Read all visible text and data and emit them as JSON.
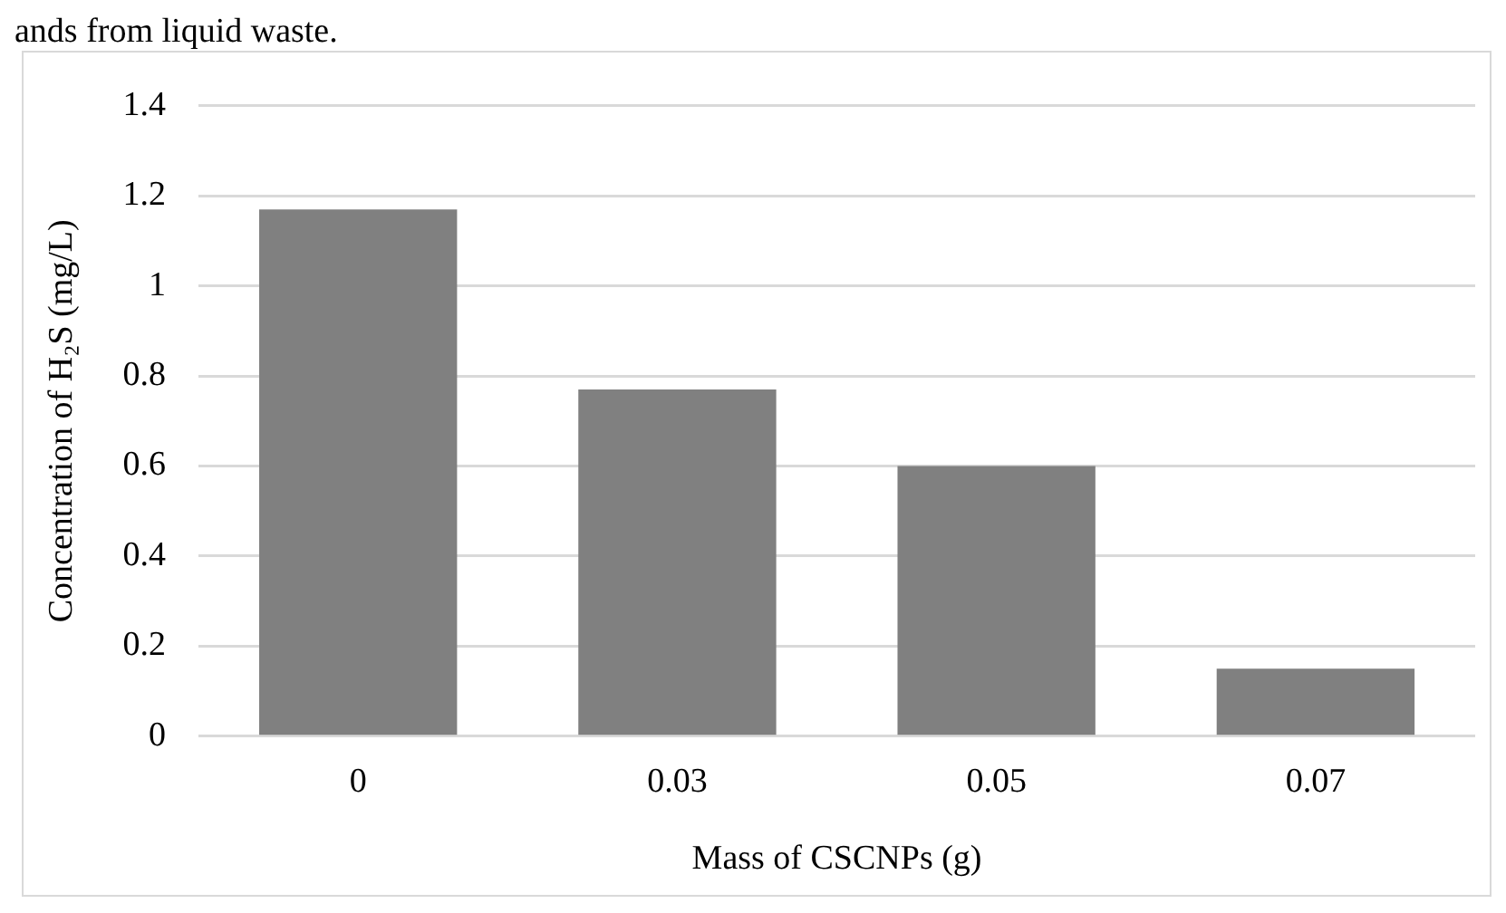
{
  "chart_data": {
    "type": "bar",
    "xlabel": "Mass of CSCNPs (g)",
    "ylabel": "Concentration of H₂S (mg/L)",
    "annotations": [
      "ands from liquid waste."
    ],
    "categories": [
      "0",
      "0.03",
      "0.05",
      "0.07"
    ],
    "values": [
      1.17,
      0.77,
      0.6,
      0.15
    ],
    "color": "#808080",
    "ylim": [
      0,
      1.4
    ],
    "yticks": [
      0,
      0.2,
      0.4,
      0.6,
      0.8,
      1,
      1.2,
      1.4
    ],
    "grid": "y"
  }
}
